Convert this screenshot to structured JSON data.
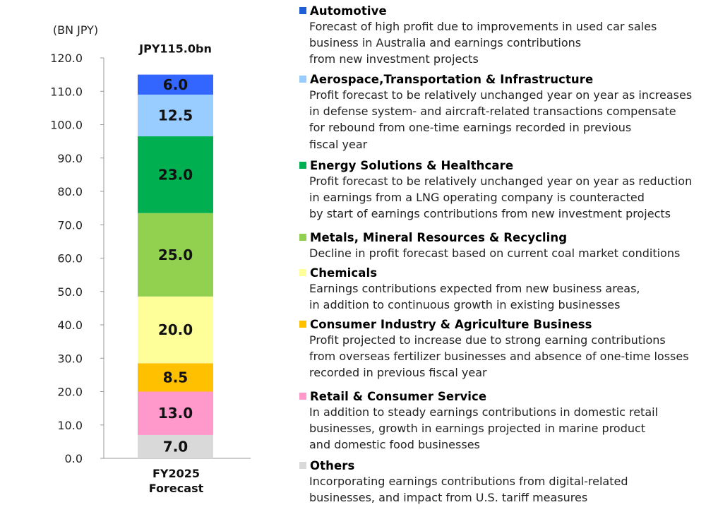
{
  "chart_data": {
    "type": "bar",
    "stacked": true,
    "unit_label": "(BN JPY)",
    "total_label": "JPY115.0bn",
    "categories": [
      "FY2025 Forecast"
    ],
    "category_lines": [
      "FY2025",
      "Forecast"
    ],
    "ylim": [
      0,
      120
    ],
    "yticks": [
      "0.0",
      "10.0",
      "20.0",
      "30.0",
      "40.0",
      "50.0",
      "60.0",
      "70.0",
      "80.0",
      "90.0",
      "100.0",
      "110.0",
      "120.0"
    ],
    "grid": false,
    "series": [
      {
        "name": "Others",
        "values": [
          7.0
        ],
        "label": "7.0",
        "color": "#d9d9d9"
      },
      {
        "name": "Retail & Consumer Service",
        "values": [
          13.0
        ],
        "label": "13.0",
        "color": "#ff99cc"
      },
      {
        "name": "Consumer Industry & Agriculture Business",
        "values": [
          8.5
        ],
        "label": "8.5",
        "color": "#ffc000"
      },
      {
        "name": "Chemicals",
        "values": [
          20.0
        ],
        "label": "20.0",
        "color": "#ffff99"
      },
      {
        "name": "Metals, Mineral Resources & Recycling",
        "values": [
          25.0
        ],
        "label": "25.0",
        "color": "#92d050"
      },
      {
        "name": "Energy Solutions & Healthcare",
        "values": [
          23.0
        ],
        "label": "23.0",
        "color": "#00b050"
      },
      {
        "name": "Aerospace,Transportation & Infrastructure",
        "values": [
          12.5
        ],
        "label": "12.5",
        "color": "#99ccff"
      },
      {
        "name": "Automotive",
        "values": [
          6.0
        ],
        "label": "6.0",
        "color": "#3366ff"
      }
    ]
  },
  "legend": [
    {
      "title": "Automotive",
      "color": "#1f5fd6",
      "lines": [
        "Forecast of high profit due to improvements in used car sales",
        "business in Australia and earnings contributions",
        "from new investment projects"
      ]
    },
    {
      "title": "Aerospace,Transportation & Infrastructure",
      "color": "#99ccff",
      "lines": [
        "Profit forecast to be relatively unchanged year on year as increases",
        "in defense system- and aircraft-related transactions compensate",
        "for rebound from one-time earnings recorded in previous",
        "fiscal year"
      ]
    },
    {
      "title": "Energy Solutions & Healthcare",
      "color": "#00b050",
      "lines": [
        "Profit forecast to be relatively unchanged year on year as reduction",
        "in earnings from a LNG operating company is counteracted",
        "by start of earnings contributions from new investment projects"
      ]
    },
    {
      "title": "Metals, Mineral Resources & Recycling",
      "color": "#92d050",
      "lines": [
        "Decline in profit forecast based on current coal market conditions"
      ]
    },
    {
      "title": "Chemicals",
      "color": "#ffff99",
      "lines": [
        "Earnings contributions expected from new business areas,",
        "in addition to continuous growth in existing businesses"
      ]
    },
    {
      "title": "Consumer Industry & Agriculture Business",
      "color": "#ffc000",
      "lines": [
        "Profit projected to increase due to strong earning contributions",
        "from overseas fertilizer businesses and absence of one-time losses",
        "recorded in previous fiscal year"
      ]
    },
    {
      "title": "Retail & Consumer Service",
      "color": "#ff99cc",
      "lines": [
        "In addition to steady earnings contributions in domestic retail",
        "businesses, growth in earnings projected in marine product",
        "and domestic food businesses"
      ]
    },
    {
      "title": "Others",
      "color": "#d9d9d9",
      "lines": [
        "Incorporating earnings contributions from digital-related",
        "businesses, and impact from U.S. tariff measures"
      ]
    }
  ]
}
